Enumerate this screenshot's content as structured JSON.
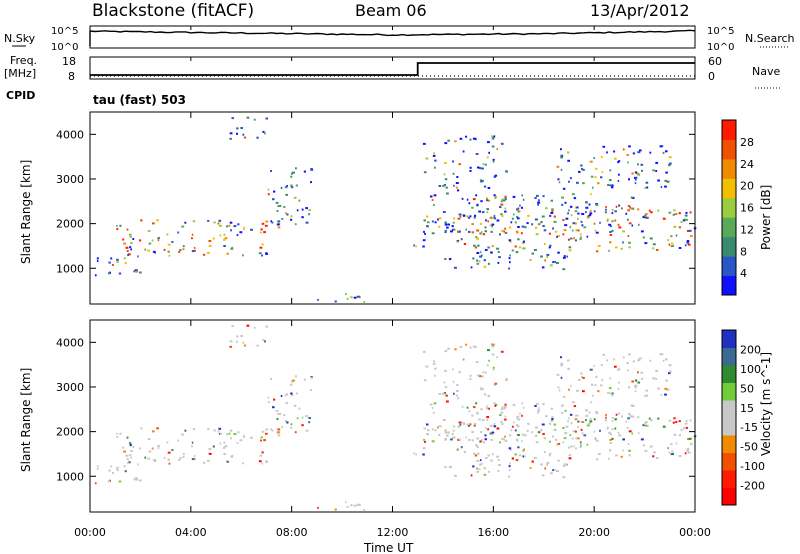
{
  "header": {
    "title": "Blackstone (fitACF)",
    "beam": "Beam 06",
    "date": "13/Apr/2012"
  },
  "noise_panel": {
    "left_label": "N.Sky",
    "right_label": "N.Search",
    "left_ticks": [
      "10^5",
      "10^0"
    ],
    "right_ticks": [
      "10^5",
      "10^0"
    ]
  },
  "freq_panel": {
    "left_label_1": "Freq.",
    "left_label_2": "[MHz]",
    "right_label": "Nave",
    "left_ticks": [
      "18",
      "8"
    ],
    "right_ticks": [
      "60",
      "0"
    ],
    "cpid_label": "CPID",
    "program_label": "tau (fast) 503"
  },
  "colors": {
    "power_scale": [
      "#1010ff",
      "#2a55c8",
      "#3a8a70",
      "#5aa85a",
      "#9acc40",
      "#f0c000",
      "#f08a00",
      "#f05000",
      "#ff1a00"
    ],
    "velocity_scale": [
      "#2030c0",
      "#3a6a90",
      "#2f8a30",
      "#6fcc3a",
      "#c8c8c8",
      "#c8c8c8",
      "#f08a00",
      "#f05000",
      "#ff1a00",
      "#ff0000"
    ]
  },
  "chart_data": [
    {
      "type": "heatmap",
      "name": "power",
      "xlabel": "",
      "ylabel": "Slant Range [km]",
      "xlim": [
        0,
        24
      ],
      "ylim": [
        200,
        4500
      ],
      "yticks": [
        "1000",
        "2000",
        "3000",
        "4000"
      ],
      "colorbar_label": "Power [dB]",
      "colorbar_ticks": [
        "4",
        "8",
        "12",
        "16",
        "20",
        "24",
        "28"
      ],
      "bands": [
        {
          "t0": 0.0,
          "t1": 2.0,
          "r0": 800,
          "r1": 1300
        },
        {
          "t0": 1.0,
          "t1": 7.5,
          "r0": 1300,
          "r1": 2100
        },
        {
          "t0": 7.0,
          "t1": 8.8,
          "r0": 2000,
          "r1": 3300
        },
        {
          "t0": 12.8,
          "t1": 13.4,
          "r0": 1500,
          "r1": 2100
        },
        {
          "t0": 13.2,
          "t1": 16.5,
          "r0": 1800,
          "r1": 4000
        },
        {
          "t0": 14.5,
          "t1": 24.0,
          "r0": 1400,
          "r1": 2400
        },
        {
          "t0": 16.0,
          "t1": 21.5,
          "r0": 1900,
          "r1": 2700
        },
        {
          "t0": 18.5,
          "t1": 23.0,
          "r0": 2800,
          "r1": 3800
        },
        {
          "t0": 14.0,
          "t1": 19.0,
          "r0": 1000,
          "r1": 1500
        },
        {
          "t0": 9.0,
          "t1": 11.0,
          "r0": 250,
          "r1": 500
        },
        {
          "t0": 5.5,
          "t1": 7.0,
          "r0": 3900,
          "r1": 4400
        }
      ]
    },
    {
      "type": "heatmap",
      "name": "velocity",
      "xlabel": "Time UT",
      "ylabel": "Slant Range [km]",
      "xlim": [
        0,
        24
      ],
      "ylim": [
        200,
        4500
      ],
      "xticks": [
        "00:00",
        "04:00",
        "08:00",
        "12:00",
        "16:00",
        "20:00",
        "00:00"
      ],
      "yticks": [
        "1000",
        "2000",
        "3000",
        "4000"
      ],
      "colorbar_label": "Velocity [m s^-1]",
      "colorbar_ticks": [
        "200",
        "100",
        "50",
        "15",
        "-15",
        "-50",
        "-100",
        "-200"
      ]
    },
    {
      "type": "line",
      "name": "noise",
      "ylim_exp": [
        0,
        5
      ],
      "level_exp": [
        4.1,
        3.6,
        3.1,
        3.4,
        4.2
      ]
    },
    {
      "type": "line",
      "name": "frequency",
      "ylim": [
        8,
        18
      ],
      "switch_time": 13.0,
      "freq_before": 10,
      "freq_after": 16
    }
  ]
}
